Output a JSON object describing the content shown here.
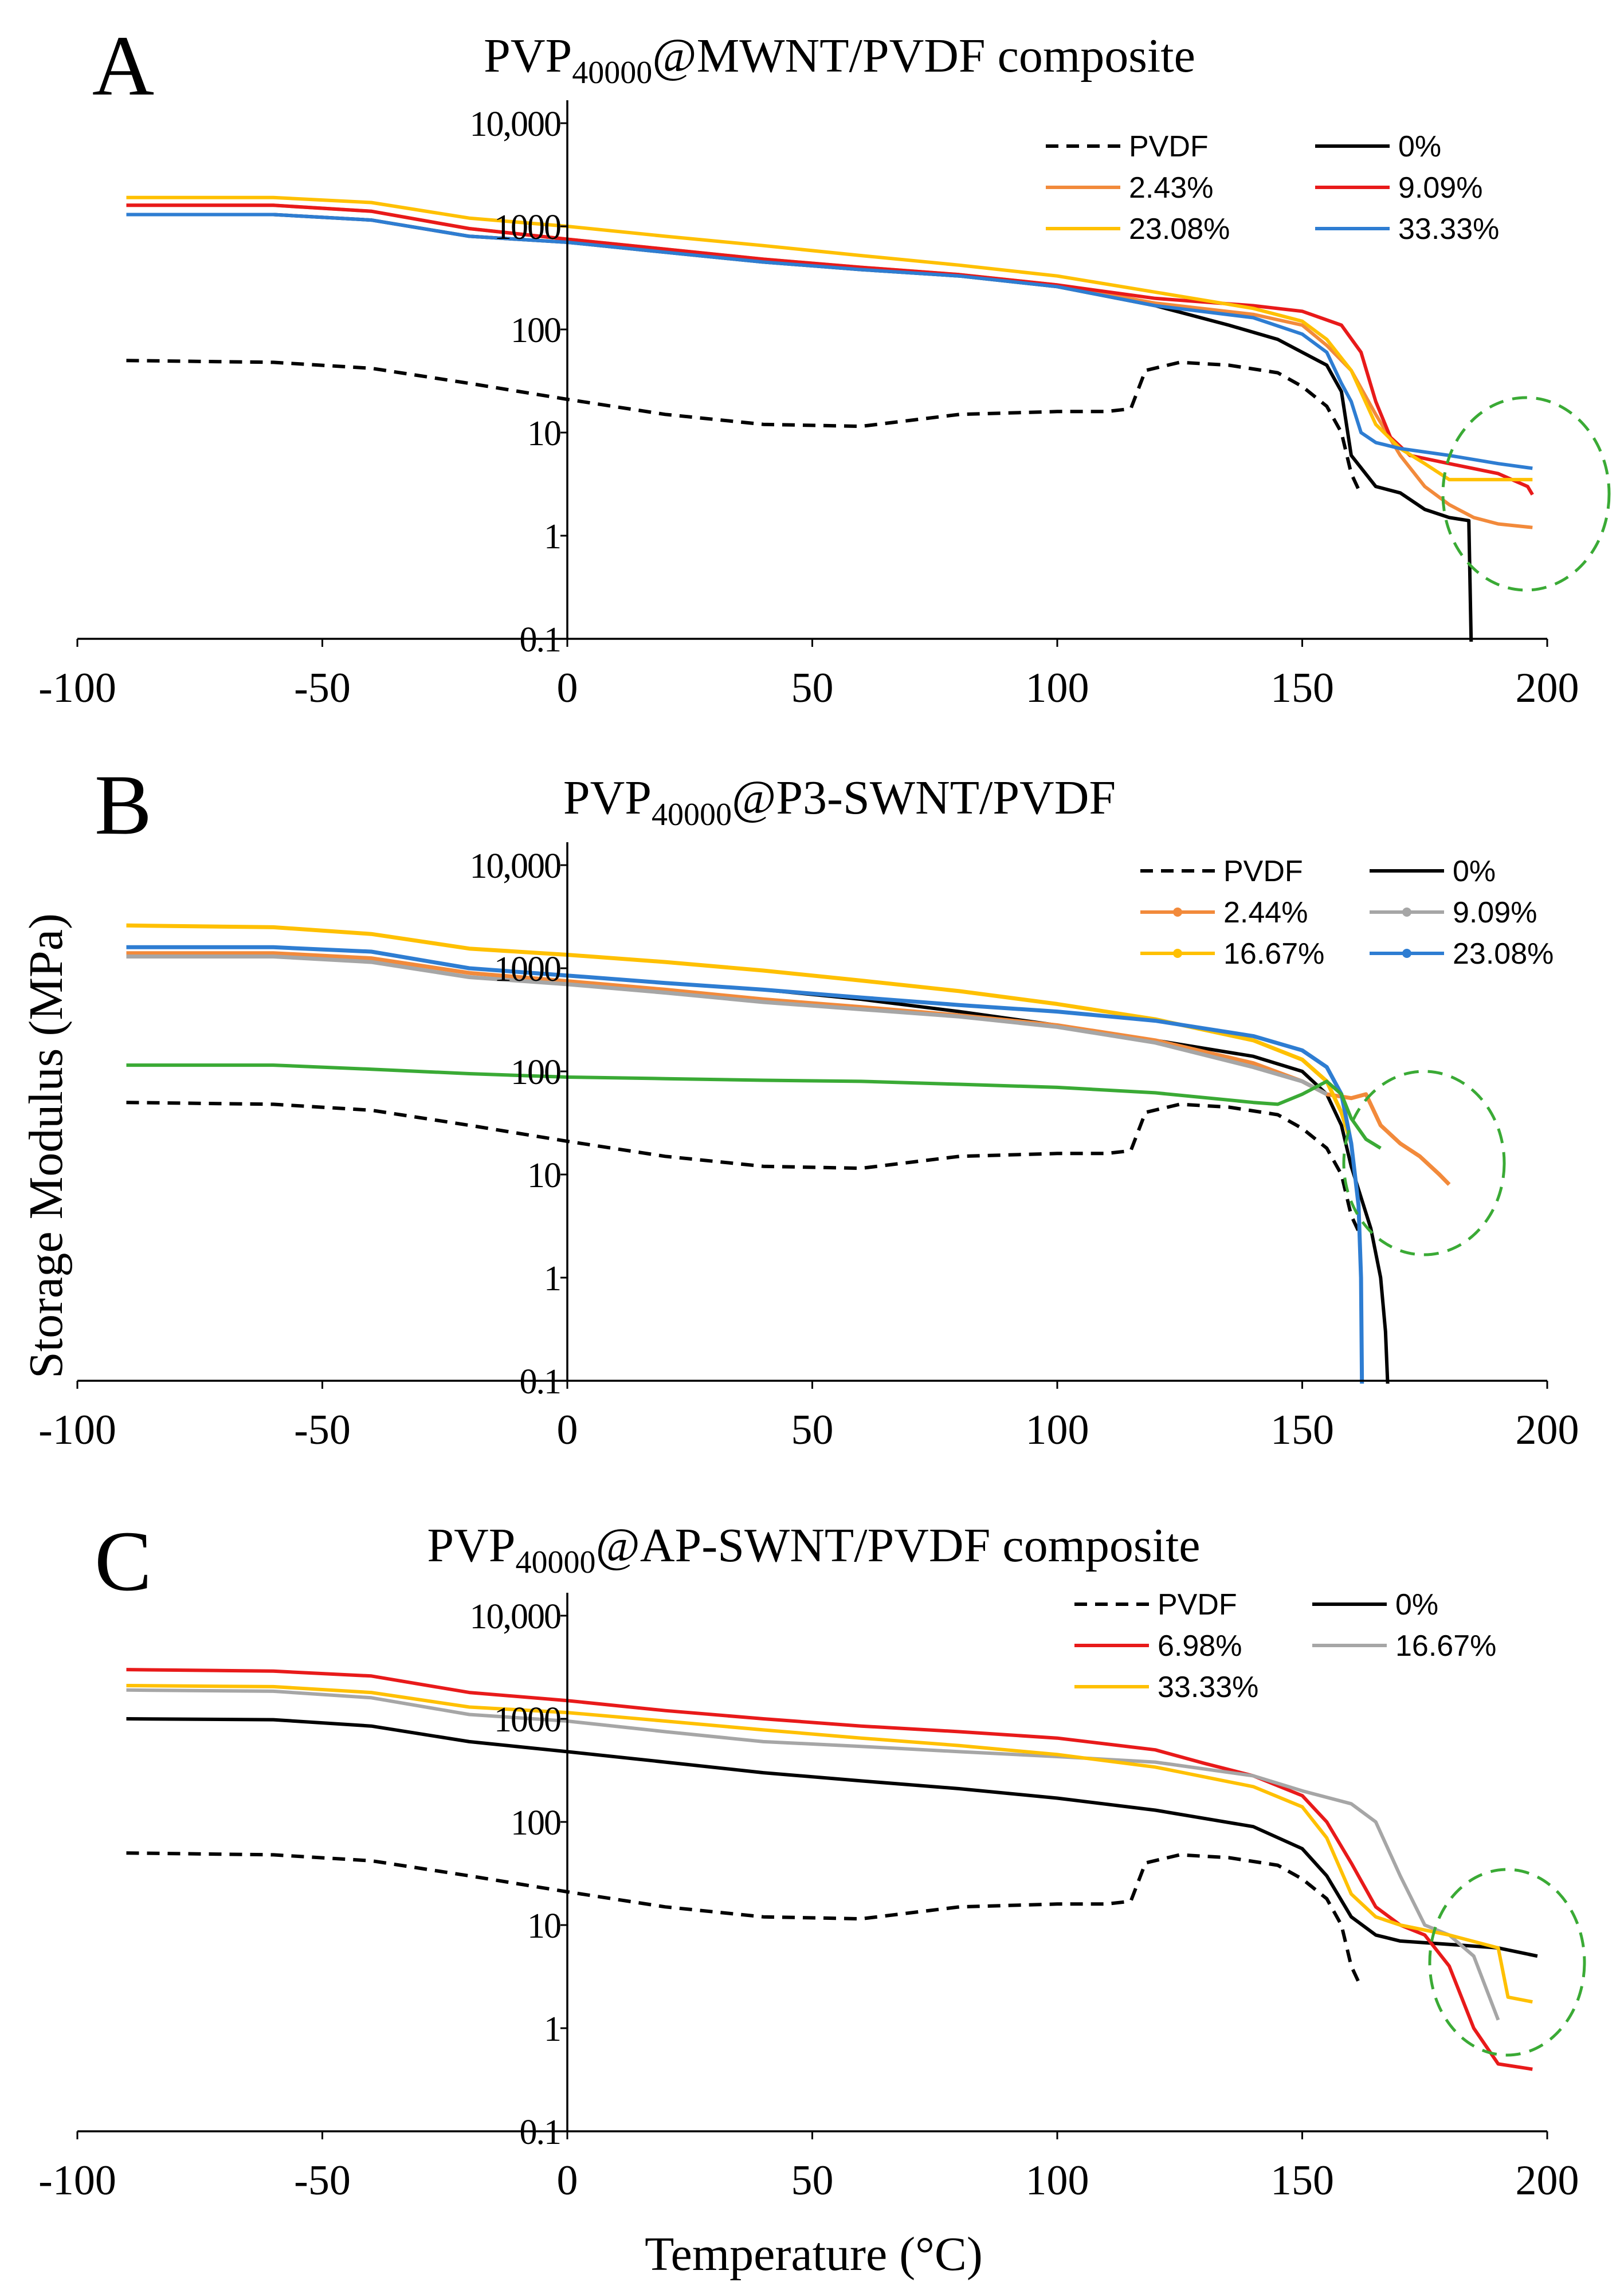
{
  "figure": {
    "ylabel": "Storage Modulus (MPa)",
    "xlabel": "Temperature (°C)"
  },
  "chart_data": [
    {
      "type": "line",
      "panel": "A",
      "title": "PVP40000@MWNT/PVDF composite",
      "title_main": "PVP",
      "title_sub": "40000",
      "title_rest": "@MWNT/PVDF composite",
      "xlabel": "",
      "ylabel": "Storage Modulus (MPa)",
      "xlim": [
        -100,
        200
      ],
      "ylim": [
        0.1,
        10000
      ],
      "yscale": "log",
      "xticks": [
        "-100",
        "-50",
        "0",
        "50",
        "100",
        "150",
        "200"
      ],
      "yticks": [
        "0.1",
        "1",
        "10",
        "100",
        "1000",
        "10,000"
      ],
      "legend_position": "top-right",
      "series": [
        {
          "name": "PVDF",
          "color": "#000000",
          "dash": "dashed",
          "marker": false,
          "x": [
            -90,
            -60,
            -40,
            -20,
            0,
            20,
            40,
            60,
            80,
            100,
            110,
            115,
            118,
            125,
            135,
            145,
            150,
            155,
            158,
            160,
            162
          ],
          "y": [
            50,
            48,
            42,
            30,
            21,
            15,
            12,
            11.5,
            15,
            16,
            16,
            17,
            40,
            48,
            45,
            38,
            28,
            18,
            10,
            4,
            2.5
          ]
        },
        {
          "name": "0%",
          "color": "#000000",
          "dash": "solid",
          "marker": false,
          "x": [
            -90,
            -60,
            -40,
            -20,
            0,
            20,
            40,
            60,
            80,
            100,
            120,
            135,
            145,
            150,
            155,
            158,
            160,
            165,
            170,
            175,
            180,
            184,
            184.5
          ],
          "y": [
            1300,
            1300,
            1150,
            800,
            700,
            560,
            450,
            380,
            330,
            260,
            170,
            110,
            80,
            60,
            45,
            25,
            6,
            3,
            2.6,
            1.8,
            1.5,
            1.4,
            0.08
          ]
        },
        {
          "name": "2.43%",
          "color": "#f28a3b",
          "dash": "solid",
          "marker": false,
          "x": [
            -90,
            -60,
            -40,
            -20,
            0,
            20,
            40,
            60,
            80,
            100,
            120,
            140,
            150,
            155,
            160,
            165,
            170,
            175,
            180,
            185,
            190,
            197
          ],
          "y": [
            1600,
            1600,
            1400,
            950,
            750,
            600,
            480,
            400,
            340,
            270,
            180,
            140,
            110,
            70,
            40,
            15,
            6,
            3,
            2,
            1.5,
            1.3,
            1.2
          ]
        },
        {
          "name": "9.09%",
          "color": "#e81a1a",
          "dash": "solid",
          "marker": false,
          "x": [
            -90,
            -60,
            -40,
            -20,
            0,
            20,
            40,
            60,
            80,
            100,
            120,
            140,
            150,
            158,
            162,
            165,
            168,
            172,
            180,
            190,
            196,
            197
          ],
          "y": [
            1600,
            1600,
            1400,
            950,
            750,
            600,
            480,
            400,
            340,
            270,
            200,
            170,
            150,
            110,
            60,
            20,
            9,
            6,
            5,
            4,
            3,
            2.5
          ]
        },
        {
          "name": "23.08%",
          "color": "#ffc000",
          "dash": "solid",
          "marker": false,
          "x": [
            -90,
            -60,
            -40,
            -20,
            0,
            20,
            40,
            60,
            80,
            100,
            120,
            140,
            150,
            155,
            160,
            165,
            170,
            175,
            180,
            190,
            197
          ],
          "y": [
            1900,
            1900,
            1700,
            1200,
            1000,
            800,
            650,
            520,
            420,
            330,
            230,
            160,
            120,
            80,
            40,
            12,
            7,
            5,
            3.5,
            3.5,
            3.5
          ]
        },
        {
          "name": "33.33%",
          "color": "#2e7dd2",
          "dash": "solid",
          "marker": false,
          "x": [
            -90,
            -60,
            -40,
            -20,
            0,
            20,
            40,
            60,
            80,
            100,
            120,
            140,
            150,
            155,
            158,
            160,
            162,
            165,
            170,
            180,
            190,
            197
          ],
          "y": [
            1300,
            1300,
            1150,
            800,
            700,
            560,
            450,
            380,
            330,
            260,
            170,
            130,
            90,
            60,
            30,
            20,
            10,
            8,
            7,
            6,
            5,
            4.5
          ]
        }
      ]
    },
    {
      "type": "line",
      "panel": "B",
      "title": "PVP40000@P3-SWNT/PVDF",
      "title_main": "PVP",
      "title_sub": "40000",
      "title_rest": "@P3-SWNT/PVDF",
      "xlabel": "",
      "ylabel": "Storage Modulus (MPa)",
      "xlim": [
        -100,
        200
      ],
      "ylim": [
        0.1,
        10000
      ],
      "yscale": "log",
      "xticks": [
        "-100",
        "-50",
        "0",
        "50",
        "100",
        "150",
        "200"
      ],
      "yticks": [
        "0.1",
        "1",
        "10",
        "100",
        "1000",
        "10,000"
      ],
      "legend_position": "top-right",
      "series": [
        {
          "name": "PVDF",
          "color": "#000000",
          "dash": "dashed",
          "marker": false,
          "x": [
            -90,
            -60,
            -40,
            -20,
            0,
            20,
            40,
            60,
            80,
            100,
            110,
            115,
            118,
            125,
            135,
            145,
            150,
            155,
            158,
            160,
            162
          ],
          "y": [
            50,
            48,
            42,
            30,
            21,
            15,
            12,
            11.5,
            15,
            16,
            16,
            17,
            40,
            48,
            45,
            38,
            28,
            18,
            10,
            4,
            2.5
          ]
        },
        {
          "name": "0%",
          "color": "#000000",
          "dash": "solid",
          "marker": false,
          "x": [
            -90,
            -60,
            -40,
            -20,
            0,
            20,
            40,
            60,
            80,
            100,
            120,
            140,
            150,
            155,
            158,
            160,
            162,
            164,
            166,
            167,
            167.5
          ],
          "y": [
            1600,
            1600,
            1450,
            1000,
            850,
            720,
            620,
            500,
            380,
            280,
            200,
            140,
            100,
            60,
            30,
            12,
            6,
            3,
            1,
            0.3,
            0.08
          ]
        },
        {
          "name": "2.44%",
          "color": "#f28a3b",
          "dash": "solid",
          "marker": true,
          "x": [
            -90,
            -60,
            -40,
            -20,
            0,
            20,
            40,
            60,
            80,
            100,
            120,
            140,
            150,
            155,
            160,
            163,
            166,
            170,
            174,
            178,
            180
          ],
          "y": [
            1400,
            1400,
            1250,
            900,
            750,
            620,
            500,
            420,
            350,
            280,
            200,
            120,
            80,
            60,
            55,
            60,
            30,
            20,
            15,
            10,
            8
          ]
        },
        {
          "name": "9.09%",
          "color": "#a6a6a6",
          "dash": "solid",
          "marker": true,
          "x": [
            -90,
            -60,
            -40,
            -20,
            0,
            20,
            40,
            60,
            80,
            100,
            120,
            140,
            150,
            155
          ],
          "y": [
            1300,
            1300,
            1150,
            820,
            700,
            580,
            470,
            400,
            340,
            270,
            190,
            110,
            80,
            60
          ]
        },
        {
          "name": "16.67%",
          "color": "#ffc000",
          "dash": "solid",
          "marker": true,
          "x": [
            -90,
            -60,
            -40,
            -20,
            0,
            20,
            40,
            60,
            80,
            100,
            120,
            140,
            150,
            155,
            158,
            160
          ],
          "y": [
            2600,
            2500,
            2150,
            1550,
            1350,
            1150,
            950,
            760,
            600,
            450,
            320,
            200,
            130,
            80,
            40,
            20
          ]
        },
        {
          "name": "23.08%",
          "color": "#2e7dd2",
          "dash": "solid",
          "marker": true,
          "x": [
            -90,
            -60,
            -40,
            -20,
            0,
            20,
            40,
            60,
            80,
            100,
            120,
            140,
            150,
            155,
            158,
            160,
            161.5,
            162,
            162.2
          ],
          "y": [
            1600,
            1600,
            1450,
            1000,
            850,
            720,
            620,
            520,
            440,
            380,
            310,
            220,
            160,
            110,
            60,
            20,
            5,
            1,
            0.08
          ]
        },
        {
          "name": "",
          "color": "#3aaa35",
          "dash": "solid",
          "marker": false,
          "x": [
            -90,
            -60,
            -40,
            -20,
            0,
            20,
            40,
            60,
            80,
            100,
            120,
            140,
            145,
            150,
            155,
            158,
            160,
            163,
            166
          ],
          "y": [
            115,
            115,
            105,
            95,
            88,
            85,
            82,
            80,
            75,
            70,
            62,
            50,
            48,
            60,
            80,
            60,
            35,
            22,
            18
          ]
        }
      ]
    },
    {
      "type": "line",
      "panel": "C",
      "title": "PVP40000@AP-SWNT/PVDF composite",
      "title_main": "PVP",
      "title_sub": "40000",
      "title_rest": "@AP-SWNT/PVDF composite",
      "xlabel": "Temperature (°C)",
      "ylabel": "Storage Modulus (MPa)",
      "xlim": [
        -100,
        200
      ],
      "ylim": [
        0.1,
        10000
      ],
      "yscale": "log",
      "xticks": [
        "-100",
        "-50",
        "0",
        "50",
        "100",
        "150",
        "200"
      ],
      "yticks": [
        "0.1",
        "1",
        "10",
        "100",
        "1000",
        "10,000"
      ],
      "legend_position": "top-right",
      "series": [
        {
          "name": "PVDF",
          "color": "#000000",
          "dash": "dashed",
          "marker": false,
          "x": [
            -90,
            -60,
            -40,
            -20,
            0,
            20,
            40,
            60,
            80,
            100,
            110,
            115,
            118,
            125,
            135,
            145,
            150,
            155,
            158,
            160,
            162
          ],
          "y": [
            50,
            48,
            42,
            30,
            21,
            15,
            12,
            11.5,
            15,
            16,
            16,
            17,
            40,
            48,
            45,
            38,
            28,
            18,
            10,
            4,
            2.5
          ]
        },
        {
          "name": "0%",
          "color": "#000000",
          "dash": "solid",
          "marker": false,
          "x": [
            -90,
            -60,
            -40,
            -20,
            0,
            20,
            40,
            60,
            80,
            100,
            120,
            140,
            150,
            155,
            160,
            165,
            170,
            180,
            190,
            198
          ],
          "y": [
            1000,
            980,
            850,
            600,
            480,
            380,
            300,
            250,
            210,
            170,
            130,
            90,
            55,
            30,
            12,
            8,
            7,
            6.5,
            6,
            5
          ]
        },
        {
          "name": "6.98%",
          "color": "#e81a1a",
          "dash": "solid",
          "marker": false,
          "x": [
            -90,
            -60,
            -40,
            -20,
            0,
            20,
            40,
            60,
            80,
            100,
            120,
            130,
            140,
            150,
            155,
            160,
            165,
            170,
            175,
            180,
            185,
            190,
            197
          ],
          "y": [
            3000,
            2900,
            2600,
            1800,
            1500,
            1200,
            1000,
            850,
            750,
            650,
            500,
            370,
            280,
            180,
            100,
            40,
            15,
            10,
            8,
            4,
            1,
            0.45,
            0.4
          ]
        },
        {
          "name": "16.67%",
          "color": "#a6a6a6",
          "dash": "solid",
          "marker": false,
          "x": [
            -90,
            -60,
            -40,
            -20,
            0,
            20,
            40,
            60,
            80,
            100,
            120,
            140,
            150,
            160,
            165,
            170,
            175,
            180,
            185,
            190
          ],
          "y": [
            1900,
            1850,
            1600,
            1100,
            950,
            750,
            600,
            540,
            480,
            430,
            380,
            280,
            200,
            150,
            100,
            30,
            10,
            8,
            5,
            1.2
          ]
        },
        {
          "name": "33.33%",
          "color": "#ffc000",
          "dash": "solid",
          "marker": false,
          "x": [
            -90,
            -60,
            -40,
            -20,
            0,
            20,
            40,
            60,
            80,
            100,
            120,
            140,
            150,
            155,
            160,
            165,
            170,
            180,
            190,
            192,
            197
          ],
          "y": [
            2100,
            2050,
            1800,
            1300,
            1150,
            950,
            780,
            650,
            550,
            450,
            340,
            220,
            140,
            70,
            20,
            12,
            10,
            8,
            6,
            2,
            1.8
          ]
        }
      ]
    }
  ]
}
